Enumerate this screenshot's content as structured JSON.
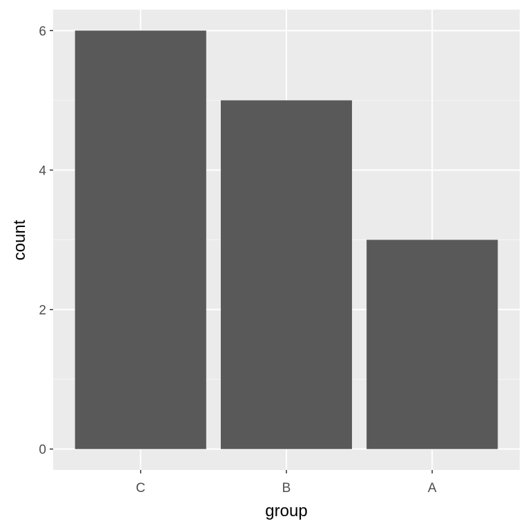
{
  "chart_data": {
    "type": "bar",
    "categories": [
      "C",
      "B",
      "A"
    ],
    "values": [
      6,
      5,
      3
    ],
    "xlabel": "group",
    "ylabel": "count",
    "ylim": [
      -0.3,
      6.3
    ],
    "yticks": [
      0,
      2,
      4,
      6
    ],
    "grid": true,
    "legend": "none",
    "colors": {
      "bar": "#595959",
      "panel_background": "#EBEBEB",
      "grid_major": "#FFFFFF",
      "grid_minor": "#F5F5F5",
      "tick_label": "#4D4D4D",
      "tick_mark": "#333333"
    }
  }
}
